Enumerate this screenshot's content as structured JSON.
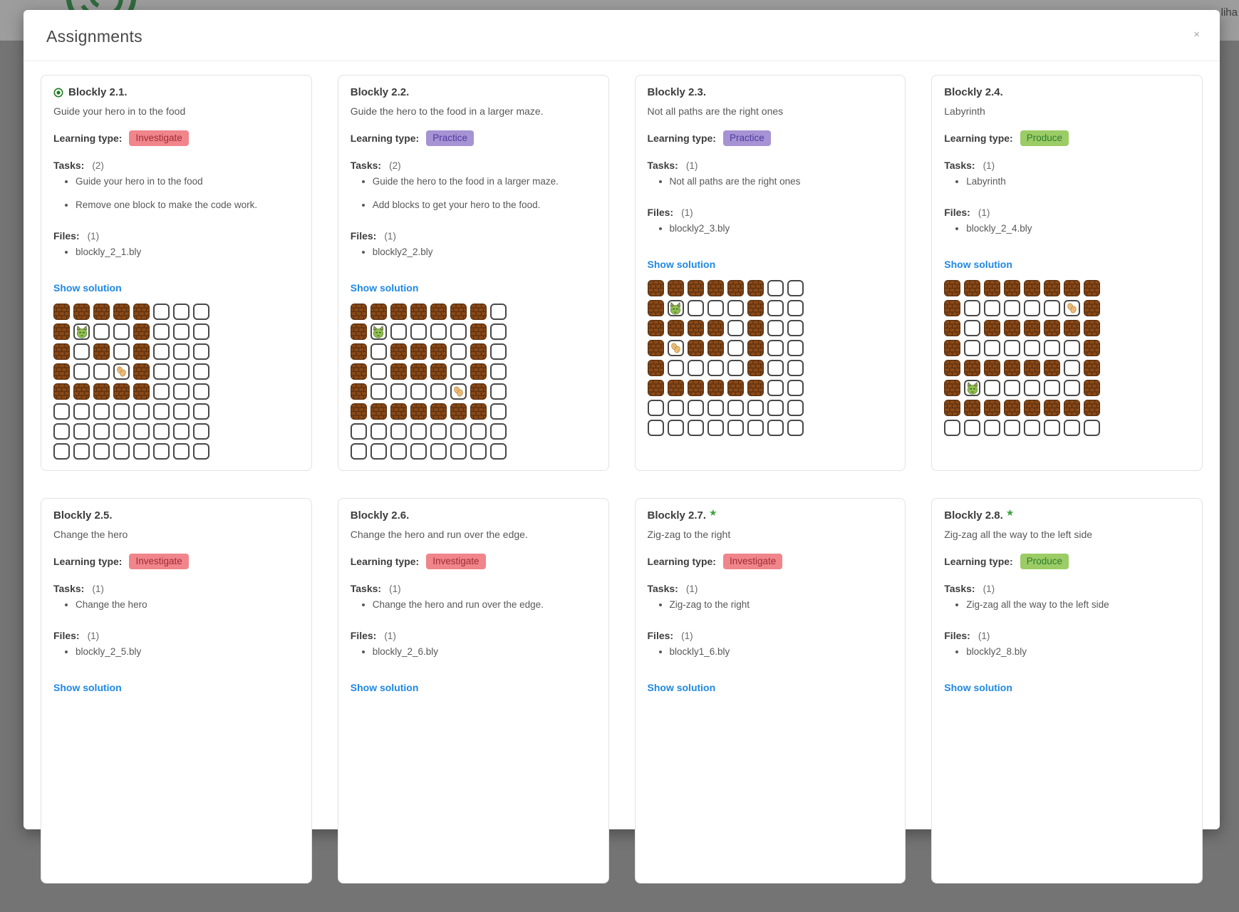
{
  "background": {
    "partial_text": "liha",
    "logo": "green-swirl-logo"
  },
  "modal": {
    "title": "Assignments",
    "close_label": "×"
  },
  "labels": {
    "learning_type": "Learning type:",
    "tasks": "Tasks:",
    "files": "Files:",
    "show_solution": "Show solution"
  },
  "badge_styles": {
    "Investigate": {
      "bg": "#f0858b",
      "fg": "#a12c34"
    },
    "Practice": {
      "bg": "#a593d4",
      "fg": "#4f3ba0"
    },
    "Produce": {
      "bg": "#9ccc65",
      "fg": "#2e7d32"
    }
  },
  "maze_colors": {
    "wall_base": "#8a4917",
    "wall_mortar": "#5e3110",
    "empty_border": "#484848",
    "hero": "#8fc04f",
    "food": "#edbf7e"
  },
  "cards": [
    {
      "title": "Blockly 2.1.",
      "active_indicator": true,
      "star": false,
      "description": "Guide your hero in to the food",
      "learning_type": "Investigate",
      "tasks_count": "(2)",
      "tasks": [
        "Guide your hero in to the food",
        "Remove one block to make the code work."
      ],
      "files_count": "(1)",
      "files": [
        "blockly_2_1.bly"
      ],
      "grid": [
        "WWWWW...",
        "WH..W...",
        "W.W.W...",
        "W..FW...",
        "WWWWW...",
        "........",
        "........",
        "........"
      ]
    },
    {
      "title": "Blockly 2.2.",
      "active_indicator": false,
      "star": false,
      "description": "Guide the hero to the food in a larger maze.",
      "learning_type": "Practice",
      "tasks_count": "(2)",
      "tasks": [
        "Guide the hero to the food in a larger maze.",
        "Add blocks to get your hero to the food."
      ],
      "files_count": "(1)",
      "files": [
        "blockly2_2.bly"
      ],
      "grid": [
        "WWWWWWW.",
        "WH....W.",
        "W.WWW.W.",
        "W.WWW.W.",
        "W....FW.",
        "WWWWWWW.",
        "........",
        "........"
      ]
    },
    {
      "title": "Blockly 2.3.",
      "active_indicator": false,
      "star": false,
      "description": "Not all paths are the right ones",
      "learning_type": "Practice",
      "tasks_count": "(1)",
      "tasks": [
        "Not all paths are the right ones"
      ],
      "files_count": "(1)",
      "files": [
        "blockly2_3.bly"
      ],
      "grid": [
        "WWWWWW..",
        "WH...W..",
        "WWWW.W..",
        "WFWW.W..",
        "W....W..",
        "WWWWWW..",
        "........",
        "........"
      ]
    },
    {
      "title": "Blockly 2.4.",
      "active_indicator": false,
      "star": false,
      "description": "Labyrinth",
      "learning_type": "Produce",
      "tasks_count": "(1)",
      "tasks": [
        "Labyrinth"
      ],
      "files_count": "(1)",
      "files": [
        "blockly_2_4.bly"
      ],
      "grid": [
        "WWWWWWWW",
        "W.....FW",
        "W.WWWWWW",
        "W......W",
        "WWWWWW.W",
        "WH.....W",
        "WWWWWWWW",
        "........"
      ]
    },
    {
      "title": "Blockly 2.5.",
      "active_indicator": false,
      "star": false,
      "description": "Change the hero",
      "learning_type": "Investigate",
      "tasks_count": "(1)",
      "tasks": [
        "Change the hero"
      ],
      "files_count": "(1)",
      "files": [
        "blockly_2_5.bly"
      ],
      "grid": null
    },
    {
      "title": "Blockly 2.6.",
      "active_indicator": false,
      "star": false,
      "description": "Change the hero and run over the edge.",
      "learning_type": "Investigate",
      "tasks_count": "(1)",
      "tasks": [
        "Change the hero and run over the edge."
      ],
      "files_count": "(1)",
      "files": [
        "blockly_2_6.bly"
      ],
      "grid": null
    },
    {
      "title": "Blockly 2.7.",
      "active_indicator": false,
      "star": true,
      "description": "Zig-zag to the right",
      "learning_type": "Investigate",
      "tasks_count": "(1)",
      "tasks": [
        "Zig-zag to the right"
      ],
      "files_count": "(1)",
      "files": [
        "blockly1_6.bly"
      ],
      "grid": null
    },
    {
      "title": "Blockly 2.8.",
      "active_indicator": false,
      "star": true,
      "description": "Zig-zag all the way to the left side",
      "learning_type": "Produce",
      "tasks_count": "(1)",
      "tasks": [
        "Zig-zag all the way to the left side"
      ],
      "files_count": "(1)",
      "files": [
        "blockly2_8.bly"
      ],
      "grid": null
    }
  ]
}
